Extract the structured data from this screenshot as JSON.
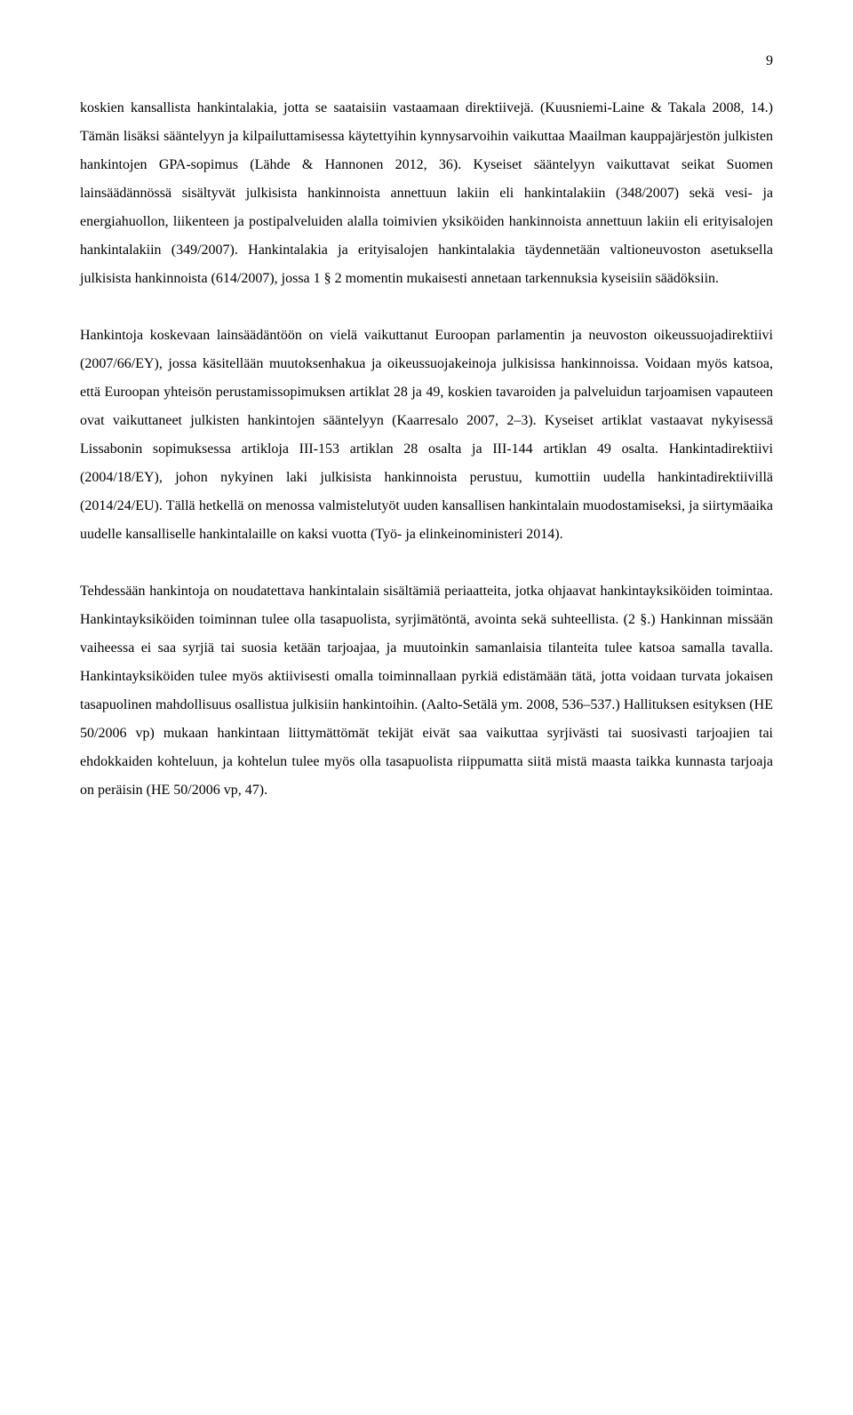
{
  "page": {
    "number": "9"
  },
  "paragraphs": {
    "p1": "koskien kansallista hankintalakia, jotta se saataisiin vastaamaan direktiivejä. (Kuusniemi-Laine & Takala 2008, 14.) Tämän lisäksi sääntelyyn ja kilpailuttamisessa käytettyihin kynnysarvoihin vaikuttaa Maailman kauppajärjestön julkisten hankintojen GPA-sopimus (Lähde & Hannonen 2012, 36). Kyseiset sääntelyyn vaikuttavat seikat Suomen lainsäädännössä sisältyvät julkisista hankinnoista annettuun lakiin eli hankintalakiin (348/2007) sekä vesi- ja energiahuollon, liikenteen ja postipalveluiden alalla toimivien yksiköiden hankinnoista annettuun lakiin eli erityisalojen hankintalakiin (349/2007). Hankintalakia ja erityisalojen hankintalakia täydennetään valtioneuvoston asetuksella julkisista hankinnoista (614/2007), jossa 1 § 2 momentin mukaisesti annetaan tarkennuksia kyseisiin säädöksiin.",
    "p2": "Hankintoja koskevaan lainsäädäntöön on vielä vaikuttanut Euroopan parlamentin ja neuvoston oikeussuojadirektiivi (2007/66/EY), jossa käsitellään muutoksenhakua ja oikeussuojakeinoja julkisissa hankinnoissa. Voidaan myös katsoa, että Euroopan yhteisön perustamissopimuksen artiklat 28 ja 49, koskien tavaroiden ja palveluidun tarjoamisen vapauteen ovat vaikuttaneet julkisten hankintojen sääntelyyn (Kaarresalo 2007, 2–3). Kyseiset artiklat vastaavat nykyisessä Lissabonin sopimuksessa artikloja III-153 artiklan 28 osalta ja III-144 artiklan 49 osalta. Hankintadirektiivi (2004/18/EY), johon nykyinen laki julkisista hankinnoista perustuu, kumottiin uudella hankintadirektiivillä (2014/24/EU). Tällä hetkellä on menossa valmistelutyöt uuden kansallisen hankintalain muodostamiseksi, ja siirtymäaika uudelle kansalliselle hankintalaille on kaksi vuotta (Työ- ja elinkeinoministeri 2014).",
    "p3": "Tehdessään hankintoja on noudatettava hankintalain sisältämiä periaatteita, jotka ohjaavat hankintayksiköiden toimintaa. Hankintayksiköiden toiminnan tulee olla tasapuolista, syrjimätöntä, avointa sekä suhteellista. (2 §.) Hankinnan missään vaiheessa ei saa syrjiä tai suosia ketään tarjoajaa, ja muutoinkin samanlaisia tilanteita tulee katsoa samalla tavalla. Hankintayksiköiden tulee myös aktiivisesti omalla toiminnallaan pyrkiä edistämään tätä, jotta voidaan turvata jokaisen tasapuolinen mahdollisuus osallistua julkisiin hankintoihin. (Aalto-Setälä ym. 2008, 536–537.) Hallituksen esityksen (HE 50/2006 vp) mukaan hankintaan liittymättömät tekijät eivät saa vaikuttaa syrjivästi tai suosivasti tarjoajien tai ehdokkaiden kohteluun, ja kohtelun tulee myös olla tasapuolista riippumatta siitä mistä maasta taikka kunnasta tarjoaja on peräisin (HE 50/2006 vp, 47)."
  }
}
